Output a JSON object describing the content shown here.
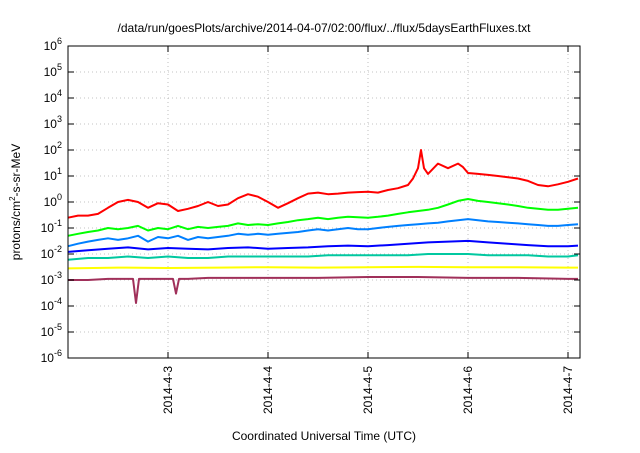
{
  "chart_data": {
    "type": "line",
    "title": "/data/run/goesPlots/archive/2014-04-07/02:00/flux/../flux/5daysEarthFluxes.txt",
    "xlabel": "Coordinated Universal Time (UTC)",
    "ylabel": {
      "base": "protons/cm",
      "sup": "2",
      "rest": "-s-sr-MeV"
    },
    "x_range_days": [
      2.0,
      7.12
    ],
    "x_reference_date": "2014-04-01",
    "x_ticks": [
      {
        "day": 3,
        "label": "2014-4-3"
      },
      {
        "day": 4,
        "label": "2014-4-4"
      },
      {
        "day": 5,
        "label": "2014-4-5"
      },
      {
        "day": 6,
        "label": "2014-4-6"
      },
      {
        "day": 7,
        "label": "2014-4-7"
      }
    ],
    "y_scale": "log",
    "y_range_exp": [
      -6,
      6
    ],
    "y_ticks": [
      {
        "exp": 6,
        "base": "10",
        "sup": "6"
      },
      {
        "exp": 5,
        "base": "10",
        "sup": "5"
      },
      {
        "exp": 4,
        "base": "10",
        "sup": "4"
      },
      {
        "exp": 3,
        "base": "10",
        "sup": "3"
      },
      {
        "exp": 2,
        "base": "10",
        "sup": "2"
      },
      {
        "exp": 1,
        "base": "10",
        "sup": "1"
      },
      {
        "exp": 0,
        "base": "10",
        "sup": "0"
      },
      {
        "exp": -1,
        "base": "10",
        "sup": "-1"
      },
      {
        "exp": -2,
        "base": "10",
        "sup": "-2"
      },
      {
        "exp": -3,
        "base": "10",
        "sup": "-3"
      },
      {
        "exp": -4,
        "base": "10",
        "sup": "-4"
      },
      {
        "exp": -5,
        "base": "10",
        "sup": "-5"
      },
      {
        "exp": -6,
        "base": "10",
        "sup": "-6"
      }
    ],
    "grid": true,
    "series": [
      {
        "color": "#ff0000",
        "x": [
          2.0,
          2.1,
          2.2,
          2.3,
          2.4,
          2.5,
          2.6,
          2.7,
          2.8,
          2.9,
          3.0,
          3.1,
          3.2,
          3.3,
          3.4,
          3.5,
          3.6,
          3.7,
          3.8,
          3.9,
          4.0,
          4.1,
          4.2,
          4.3,
          4.4,
          4.5,
          4.6,
          4.7,
          4.8,
          4.9,
          5.0,
          5.1,
          5.2,
          5.3,
          5.4,
          5.45,
          5.5,
          5.53,
          5.56,
          5.6,
          5.7,
          5.8,
          5.9,
          5.95,
          6.0,
          6.1,
          6.2,
          6.3,
          6.4,
          6.5,
          6.6,
          6.7,
          6.8,
          6.9,
          7.0,
          7.1
        ],
        "y": [
          0.25,
          0.3,
          0.3,
          0.35,
          0.6,
          1.0,
          1.2,
          1.0,
          0.6,
          0.9,
          0.8,
          0.45,
          0.55,
          0.7,
          1.0,
          0.7,
          0.8,
          1.4,
          2.0,
          1.6,
          1.0,
          0.6,
          0.9,
          1.4,
          2.1,
          2.3,
          2.0,
          2.1,
          2.3,
          2.4,
          2.5,
          2.3,
          2.9,
          3.4,
          4.5,
          8.0,
          20.0,
          100.0,
          20.0,
          12.0,
          30.0,
          20.0,
          30.0,
          22.0,
          13.0,
          12.0,
          11.0,
          10.0,
          9.0,
          8.0,
          6.5,
          4.5,
          4.0,
          4.8,
          6.0,
          8.0
        ]
      },
      {
        "color": "#00ff00",
        "x": [
          2.0,
          2.1,
          2.2,
          2.3,
          2.4,
          2.5,
          2.6,
          2.7,
          2.8,
          2.9,
          3.0,
          3.1,
          3.2,
          3.3,
          3.4,
          3.5,
          3.6,
          3.7,
          3.8,
          3.9,
          4.0,
          4.1,
          4.2,
          4.3,
          4.4,
          4.5,
          4.6,
          4.7,
          4.8,
          4.9,
          5.0,
          5.1,
          5.2,
          5.3,
          5.4,
          5.5,
          5.6,
          5.7,
          5.8,
          5.9,
          6.0,
          6.1,
          6.2,
          6.3,
          6.4,
          6.5,
          6.6,
          6.7,
          6.8,
          6.9,
          7.0,
          7.1
        ],
        "y": [
          0.05,
          0.06,
          0.07,
          0.08,
          0.1,
          0.09,
          0.1,
          0.12,
          0.08,
          0.1,
          0.09,
          0.12,
          0.09,
          0.11,
          0.1,
          0.11,
          0.12,
          0.15,
          0.13,
          0.14,
          0.13,
          0.15,
          0.17,
          0.2,
          0.22,
          0.25,
          0.22,
          0.25,
          0.27,
          0.26,
          0.25,
          0.27,
          0.3,
          0.35,
          0.4,
          0.45,
          0.5,
          0.6,
          0.8,
          1.1,
          1.3,
          1.1,
          1.0,
          0.9,
          0.8,
          0.7,
          0.6,
          0.55,
          0.5,
          0.5,
          0.55,
          0.6
        ]
      },
      {
        "color": "#0080ff",
        "x": [
          2.0,
          2.1,
          2.2,
          2.3,
          2.4,
          2.5,
          2.6,
          2.7,
          2.8,
          2.9,
          3.0,
          3.1,
          3.2,
          3.3,
          3.4,
          3.5,
          3.6,
          3.7,
          3.8,
          3.9,
          4.0,
          4.1,
          4.2,
          4.3,
          4.4,
          4.5,
          4.6,
          4.7,
          4.8,
          4.9,
          5.0,
          5.1,
          5.2,
          5.3,
          5.4,
          5.5,
          5.6,
          5.7,
          5.8,
          5.9,
          6.0,
          6.1,
          6.2,
          6.3,
          6.4,
          6.5,
          6.6,
          6.7,
          6.8,
          6.9,
          7.0,
          7.1
        ],
        "y": [
          0.02,
          0.025,
          0.03,
          0.035,
          0.04,
          0.035,
          0.04,
          0.05,
          0.03,
          0.045,
          0.04,
          0.05,
          0.035,
          0.045,
          0.04,
          0.045,
          0.05,
          0.06,
          0.055,
          0.06,
          0.055,
          0.06,
          0.065,
          0.07,
          0.08,
          0.09,
          0.08,
          0.09,
          0.1,
          0.09,
          0.09,
          0.1,
          0.11,
          0.12,
          0.13,
          0.14,
          0.15,
          0.16,
          0.18,
          0.2,
          0.22,
          0.2,
          0.18,
          0.17,
          0.16,
          0.15,
          0.14,
          0.13,
          0.12,
          0.12,
          0.13,
          0.14
        ]
      },
      {
        "color": "#0000ff",
        "x": [
          2.0,
          2.2,
          2.4,
          2.6,
          2.8,
          3.0,
          3.2,
          3.4,
          3.6,
          3.8,
          4.0,
          4.2,
          4.4,
          4.6,
          4.8,
          5.0,
          5.2,
          5.4,
          5.6,
          5.8,
          6.0,
          6.2,
          6.4,
          6.6,
          6.8,
          7.0,
          7.1
        ],
        "y": [
          0.012,
          0.014,
          0.016,
          0.018,
          0.015,
          0.017,
          0.016,
          0.015,
          0.017,
          0.018,
          0.016,
          0.017,
          0.018,
          0.02,
          0.021,
          0.02,
          0.022,
          0.025,
          0.028,
          0.03,
          0.032,
          0.028,
          0.025,
          0.022,
          0.02,
          0.02,
          0.021
        ]
      },
      {
        "color": "#00c8a0",
        "x": [
          2.0,
          2.2,
          2.4,
          2.6,
          2.8,
          3.0,
          3.2,
          3.4,
          3.6,
          3.8,
          4.0,
          4.2,
          4.4,
          4.6,
          4.8,
          5.0,
          5.2,
          5.4,
          5.6,
          5.8,
          6.0,
          6.2,
          6.4,
          6.6,
          6.8,
          7.0,
          7.1
        ],
        "y": [
          0.006,
          0.007,
          0.007,
          0.008,
          0.007,
          0.008,
          0.007,
          0.007,
          0.008,
          0.008,
          0.008,
          0.008,
          0.008,
          0.009,
          0.009,
          0.009,
          0.009,
          0.009,
          0.01,
          0.01,
          0.01,
          0.009,
          0.009,
          0.009,
          0.008,
          0.008,
          0.009
        ]
      },
      {
        "color": "#ffff00",
        "x": [
          2.0,
          2.5,
          3.0,
          3.5,
          4.0,
          4.5,
          5.0,
          5.5,
          6.0,
          6.5,
          7.0,
          7.1
        ],
        "y": [
          0.0028,
          0.003,
          0.0029,
          0.003,
          0.0031,
          0.003,
          0.0031,
          0.0032,
          0.0031,
          0.0031,
          0.003,
          0.003
        ]
      },
      {
        "color": "#a0305a",
        "x": [
          2.0,
          2.2,
          2.4,
          2.6,
          2.65,
          2.68,
          2.71,
          2.8,
          3.0,
          3.05,
          3.08,
          3.11,
          3.2,
          3.4,
          3.6,
          3.8,
          4.0,
          4.5,
          5.0,
          5.5,
          6.0,
          6.5,
          7.0,
          7.1
        ],
        "y": [
          0.001,
          0.001,
          0.0011,
          0.0011,
          0.0011,
          0.00013,
          0.0011,
          0.0011,
          0.0011,
          0.0011,
          0.0003,
          0.0011,
          0.0011,
          0.0012,
          0.0012,
          0.0012,
          0.0012,
          0.0012,
          0.0013,
          0.0013,
          0.0012,
          0.0012,
          0.0011,
          0.0011
        ]
      }
    ]
  }
}
